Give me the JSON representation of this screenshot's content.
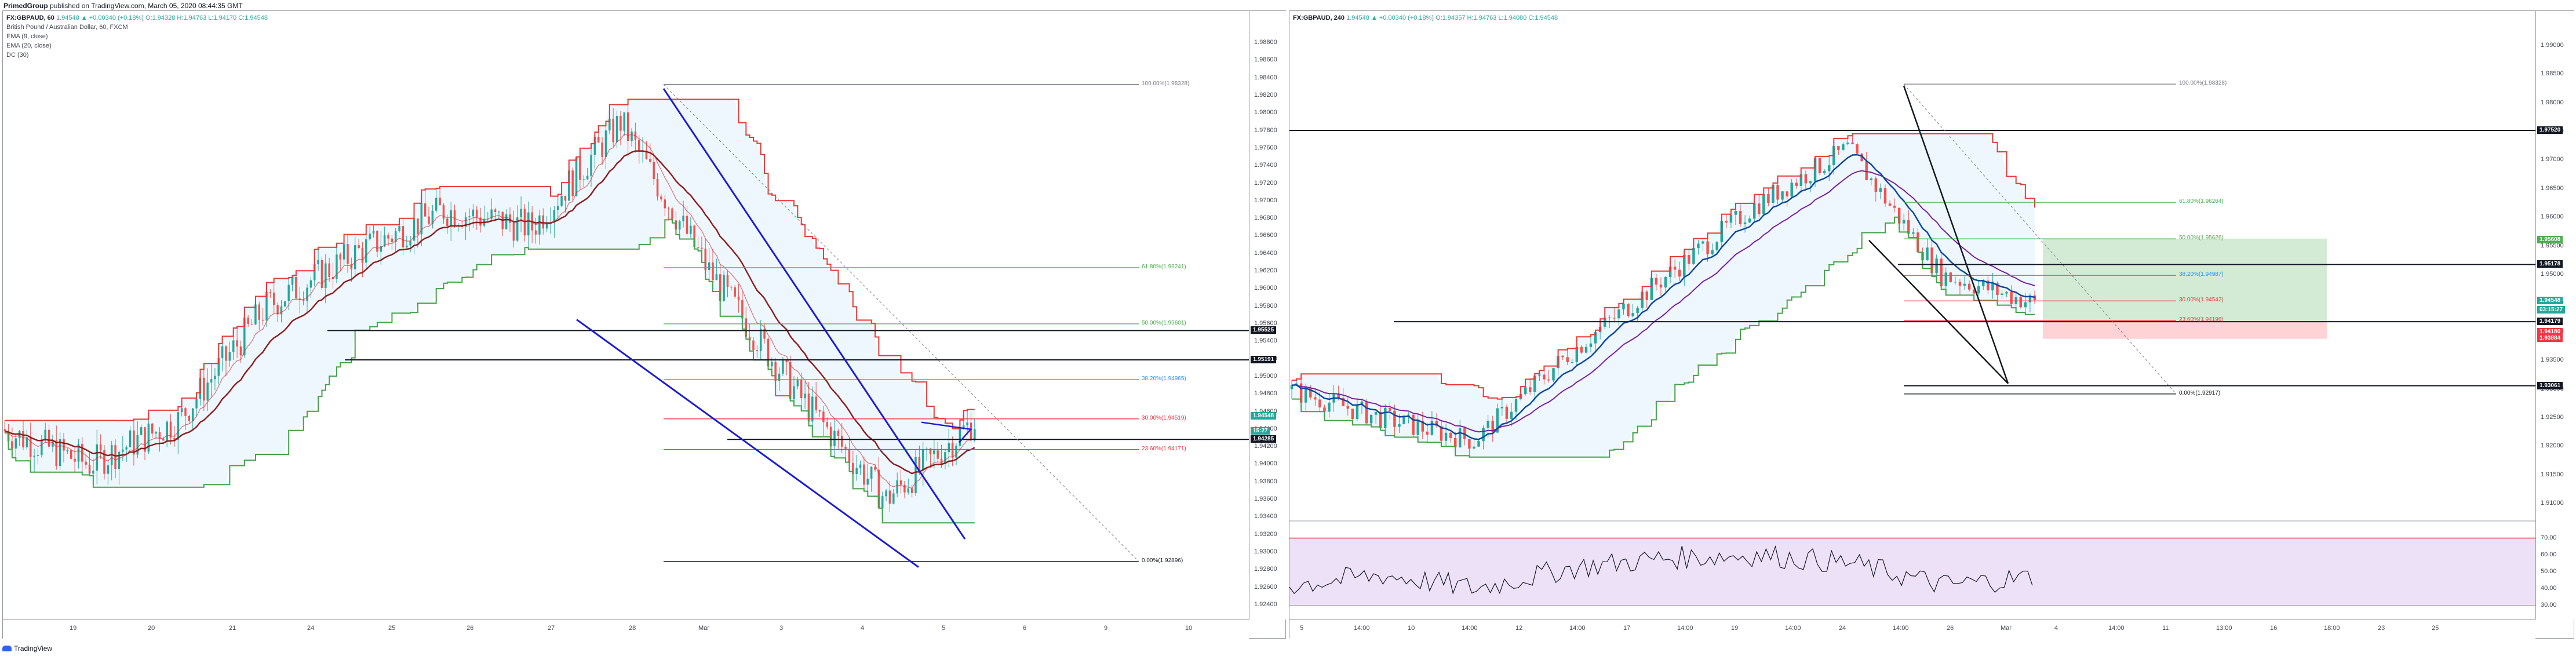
{
  "header": {
    "publisher": "PrimedGroup",
    "published_on": "published on TradingView.com, March 05, 2020 08:44:35 GMT"
  },
  "left_chart": {
    "title_line": "FX:GBPAUD, 60",
    "ohlc": "1.94548  ▲ +0.00340 (+0.18%)  O:1.94328  H:1.94763  L:1.94170  C:1.94548",
    "indicators": [
      "British Pound / Australian Dollar, 60, FXCM",
      "EMA (9, close)",
      "EMA (20, close)",
      "DC (30)"
    ],
    "price_ticks": [
      "1.98800",
      "1.98600",
      "1.98400",
      "1.98200",
      "1.98000",
      "1.97800",
      "1.97600",
      "1.97400",
      "1.97200",
      "1.97000",
      "1.96800",
      "1.96600",
      "1.96400",
      "1.96200",
      "1.96000",
      "1.95800",
      "1.95600",
      "1.95400",
      "1.95200",
      "1.95000",
      "1.94800",
      "1.94600",
      "1.94400",
      "1.94200",
      "1.94000",
      "1.93800",
      "1.93600",
      "1.93400",
      "1.93200",
      "1.93000",
      "1.92800",
      "1.92600",
      "1.92400"
    ],
    "time_ticks": [
      "19",
      "20",
      "21",
      "24",
      "25",
      "26",
      "27",
      "28",
      "Mar",
      "3",
      "4",
      "5",
      "6",
      "9",
      "10"
    ],
    "price_labels": [
      {
        "text": "1.95525",
        "color": "#131722"
      },
      {
        "text": "1.95191",
        "color": "#131722"
      },
      {
        "text": "1.94548",
        "color": "#26a69a"
      },
      {
        "text": "15:27",
        "color": "#26a69a"
      },
      {
        "text": "1.94285",
        "color": "#131722"
      }
    ],
    "fib_labels": [
      {
        "text": "100.00%(1.98328)",
        "color": "#787b86"
      },
      {
        "text": "61.80%(1.96241)",
        "color": "#4caf50"
      },
      {
        "text": "50.00%(1.95601)",
        "color": "#4caf50"
      },
      {
        "text": "38.20%(1.94965)",
        "color": "#2196f3"
      },
      {
        "text": "30.00%(1.94519)",
        "color": "#f23645"
      },
      {
        "text": "23.60%(1.94171)",
        "color": "#f23645"
      },
      {
        "text": "0.00%(1.92896)",
        "color": "#131722"
      }
    ]
  },
  "right_chart": {
    "title_line": "FX:GBPAUD, 240",
    "ohlc": "1.94548  ▲ +0.00340 (+0.18%)  O:1.94357  H:1.94763  L:1.94080  C:1.94548",
    "price_ticks": [
      "1.99000",
      "1.98500",
      "1.98000",
      "1.97500",
      "1.97000",
      "1.96500",
      "1.96000",
      "1.95500",
      "1.95000",
      "1.94500",
      "1.94000",
      "1.93500",
      "1.93000",
      "1.92500",
      "1.92000",
      "1.91500",
      "1.91000"
    ],
    "rsi_ticks": [
      "70.00",
      "60.00",
      "50.00",
      "40.00",
      "30.00"
    ],
    "time_ticks": [
      "5",
      "14:00",
      "10",
      "14:00",
      "12",
      "14:00",
      "17",
      "14:00",
      "19",
      "14:00",
      "24",
      "14:00",
      "26",
      "Mar",
      "4",
      "14:00",
      "11",
      "13:00",
      "16",
      "18:00",
      "23",
      "25"
    ],
    "price_labels": [
      {
        "text": "1.97520",
        "color": "#131722"
      },
      {
        "text": "1.95608",
        "color": "#4caf50"
      },
      {
        "text": "1.95178",
        "color": "#131722"
      },
      {
        "text": "1.94548",
        "color": "#26a69a"
      },
      {
        "text": "03:15:27",
        "color": "#26a69a"
      },
      {
        "text": "1.94179",
        "color": "#131722"
      },
      {
        "text": "1.94180",
        "color": "#f23645"
      },
      {
        "text": "1.93884",
        "color": "#f23645"
      },
      {
        "text": "1.93061",
        "color": "#131722"
      }
    ],
    "fib_labels": [
      {
        "text": "100.00%(1.98328)",
        "color": "#787b86"
      },
      {
        "text": "61.80%(1.96264)",
        "color": "#4caf50"
      },
      {
        "text": "50.00%(1.95626)",
        "color": "#4caf50"
      },
      {
        "text": "38.20%(1.94987)",
        "color": "#2196f3"
      },
      {
        "text": "30.00%(1.94542)",
        "color": "#f23645"
      },
      {
        "text": "23.60%(1.94198)",
        "color": "#f23645"
      },
      {
        "text": "0.00%(1.92917)",
        "color": "#131722"
      }
    ]
  },
  "footer": {
    "brand": "TradingView"
  },
  "chart_data": [
    {
      "type": "line",
      "title": "FX:GBPAUD, 60",
      "ylim": [
        1.923,
        1.989
      ],
      "x": [
        "19",
        "20",
        "21",
        "24",
        "25",
        "26",
        "27",
        "28",
        "Mar",
        "3",
        "4",
        "5"
      ],
      "series": [
        {
          "name": "FX:GBPAUD, 60",
          "values": [
            1.944,
            1.94,
            1.945,
            1.958,
            1.964,
            1.969,
            1.967,
            1.979,
            1.962,
            1.948,
            1.936,
            1.945
          ]
        }
      ]
    },
    {
      "type": "line",
      "title": "FX:GBPAUD, 240",
      "ylim": [
        1.908,
        1.992
      ],
      "x": [
        "5",
        "10",
        "12",
        "17",
        "19",
        "24",
        "26",
        "Mar",
        "4"
      ],
      "series": [
        {
          "name": "FX:GBPAUD, 240",
          "values": [
            1.93,
            1.925,
            1.921,
            1.936,
            1.949,
            1.962,
            1.972,
            1.95,
            1.945
          ]
        },
        {
          "name": "RSI",
          "values": [
            42,
            48,
            40,
            52,
            58,
            60,
            55,
            42,
            47
          ]
        }
      ]
    }
  ],
  "colors": {
    "up": "#26a69a",
    "down": "#ef5350",
    "ema9": "#8e1e1e",
    "dc_upper": "#e53935",
    "dc_lower": "#43a047",
    "dc_fill": "#e3f2fd",
    "trend": "#1c1cd4",
    "rsi_fill": "#ede1f7"
  }
}
